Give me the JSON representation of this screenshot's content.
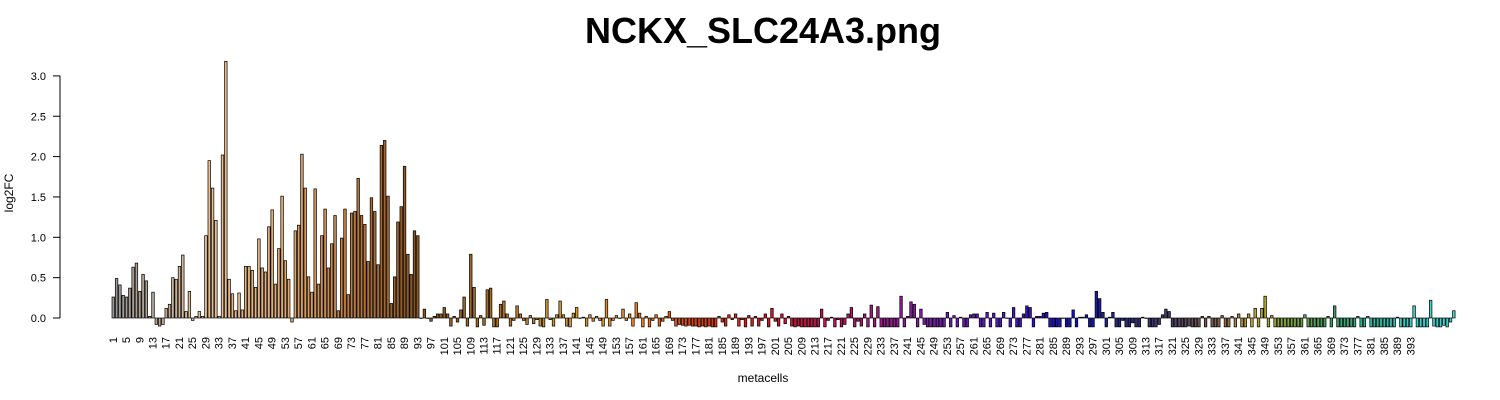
{
  "chart_data": {
    "type": "bar",
    "title": "NCKX_SLC24A3.png",
    "xlabel": "metacells",
    "ylabel": "log2FC",
    "ylim": [
      -0.12,
      3.2
    ],
    "yticks": [
      0.0,
      0.5,
      1.0,
      1.5,
      2.0,
      2.5,
      3.0
    ],
    "ytick_labels": [
      "0.0",
      "0.5",
      "1.0",
      "1.5",
      "2.0",
      "2.5",
      "3.0"
    ],
    "xtick_labels": [
      "1",
      "5",
      "9",
      "13",
      "17",
      "21",
      "25",
      "29",
      "33",
      "37",
      "41",
      "45",
      "49",
      "53",
      "57",
      "61",
      "65",
      "69",
      "73",
      "77",
      "81",
      "85",
      "89",
      "93",
      "97",
      "101",
      "105",
      "109",
      "113",
      "117",
      "121",
      "125",
      "129",
      "133",
      "137",
      "141",
      "145",
      "149",
      "153",
      "157",
      "161",
      "165",
      "169",
      "173",
      "177",
      "181",
      "185",
      "189",
      "193",
      "197",
      "201",
      "205",
      "209",
      "213",
      "217",
      "221",
      "225",
      "229",
      "233",
      "237",
      "241",
      "245",
      "249",
      "253",
      "257",
      "261",
      "265",
      "269",
      "273",
      "277",
      "281",
      "285",
      "289",
      "293",
      "297",
      "301",
      "305",
      "309",
      "313",
      "317",
      "321",
      "325",
      "329",
      "333",
      "337",
      "341",
      "345",
      "349",
      "353",
      "357",
      "361",
      "365",
      "369",
      "373",
      "377",
      "381",
      "385",
      "389",
      "393"
    ],
    "categories_count": 395,
    "grid": false,
    "legend": "none",
    "values": [
      0.26,
      0.49,
      0.41,
      0.28,
      0.26,
      0.37,
      0.63,
      0.68,
      0.33,
      0.54,
      0.46,
      0.02,
      0.32,
      -0.08,
      -0.1,
      -0.08,
      0.12,
      0.17,
      0.5,
      0.48,
      0.64,
      0.78,
      0.08,
      0.33,
      -0.03,
      0.02,
      0.08,
      0.02,
      1.02,
      1.95,
      1.61,
      1.21,
      0.02,
      2.02,
      3.18,
      0.48,
      0.3,
      0.09,
      0.31,
      0.1,
      0.64,
      0.64,
      0.59,
      0.38,
      0.98,
      0.62,
      0.57,
      1.13,
      1.34,
      0.42,
      0.86,
      1.51,
      0.71,
      0.48,
      -0.05,
      1.08,
      1.15,
      2.03,
      1.61,
      0.51,
      0.32,
      1.6,
      0.42,
      1.02,
      1.35,
      0.62,
      0.92,
      1.27,
      0.09,
      0.99,
      1.35,
      0.29,
      1.3,
      1.32,
      1.73,
      1.27,
      1.16,
      0.7,
      1.49,
      1.32,
      0.66,
      2.14,
      2.2,
      1.51,
      0.18,
      0.51,
      1.19,
      1.38,
      1.88,
      0.79,
      0.54,
      1.08,
      1.02,
      0.0,
      0.11,
      0.0,
      -0.04,
      0.02,
      0.05,
      0.05,
      0.13,
      0.05,
      -0.1,
      0.02,
      -0.05,
      0.1,
      0.26,
      -0.1,
      0.79,
      0.38,
      -0.11,
      0.03,
      -0.09,
      0.35,
      0.37,
      -0.11,
      -0.11,
      0.17,
      0.21,
      0.05,
      -0.1,
      -0.03,
      0.15,
      0.05,
      -0.03,
      -0.08,
      0.03,
      -0.07,
      -0.02,
      -0.1,
      -0.11,
      0.23,
      -0.02,
      -0.1,
      0.04,
      0.21,
      0.04,
      -0.1,
      -0.11,
      0.06,
      0.13,
      0.0,
      0.01,
      -0.1,
      0.04,
      -0.04,
      0.02,
      -0.03,
      -0.1,
      0.23,
      -0.1,
      -0.03,
      0.03,
      0.0,
      0.11,
      -0.03,
      0.05,
      -0.1,
      0.19,
      0.06,
      -0.11,
      0.02,
      -0.11,
      -0.03,
      0.04,
      -0.1,
      -0.04,
      0.02,
      0.08,
      -0.03,
      -0.1,
      -0.08,
      -0.09,
      -0.1,
      -0.09,
      -0.1,
      -0.1,
      -0.11,
      -0.1,
      -0.11,
      -0.1,
      -0.11,
      -0.11,
      0.02,
      -0.05,
      -0.1,
      0.04,
      -0.02,
      0.05,
      -0.1,
      -0.02,
      -0.11,
      0.03,
      -0.1,
      0.02,
      -0.1,
      -0.03,
      0.05,
      -0.11,
      0.12,
      -0.04,
      -0.1,
      0.05,
      -0.07,
      0.02,
      -0.1,
      -0.11,
      -0.1,
      -0.11,
      -0.11,
      -0.11,
      -0.11,
      -0.11,
      -0.11,
      0.11,
      -0.11,
      -0.03,
      0.01,
      -0.11,
      -0.02,
      -0.11,
      -0.08,
      0.05,
      0.13,
      -0.11,
      -0.04,
      -0.1,
      0.05,
      -0.11,
      0.16,
      -0.11,
      0.14,
      -0.11,
      -0.11,
      -0.11,
      -0.11,
      -0.11,
      -0.11,
      0.27,
      -0.11,
      0.02,
      0.2,
      0.17,
      -0.11,
      0.11,
      -0.08,
      -0.11,
      -0.11,
      -0.11,
      -0.11,
      -0.11,
      -0.11,
      0.07,
      -0.11,
      0.03,
      -0.11,
      0.01,
      -0.11,
      -0.11,
      0.04,
      0.05,
      0.05,
      -0.11,
      -0.11,
      0.07,
      -0.11,
      0.06,
      -0.11,
      -0.11,
      0.07,
      0.0,
      -0.11,
      0.13,
      -0.11,
      -0.11,
      0.05,
      0.15,
      0.13,
      -0.11,
      0.02,
      0.02,
      0.06,
      0.07,
      -0.11,
      -0.11,
      -0.11,
      -0.11,
      0.0,
      -0.11,
      -0.11,
      0.1,
      -0.11,
      0.01,
      0.01,
      0.04,
      -0.11,
      -0.11,
      0.33,
      0.24,
      0.07,
      -0.11,
      0.01,
      0.07,
      -0.11,
      -0.11,
      -0.03,
      -0.11,
      -0.11,
      -0.06,
      -0.11,
      -0.11,
      0.01,
      0.0,
      -0.11,
      -0.11,
      -0.11,
      -0.08,
      0.04,
      0.11,
      0.08,
      -0.11,
      -0.11,
      -0.11,
      -0.11,
      -0.11,
      -0.1,
      -0.11,
      -0.11,
      -0.11,
      0.02,
      -0.11,
      0.02,
      -0.11,
      -0.11,
      -0.11,
      0.03,
      -0.11,
      -0.11,
      0.02,
      -0.11,
      0.05,
      -0.11,
      -0.11,
      0.05,
      -0.11,
      0.12,
      -0.11,
      0.12,
      0.27,
      -0.11,
      0.03,
      -0.11,
      -0.11,
      -0.11,
      -0.11,
      -0.11,
      -0.11,
      -0.11,
      -0.11,
      -0.11,
      0.04,
      -0.11,
      -0.11,
      -0.11,
      -0.11,
      -0.11,
      -0.11,
      0.02,
      -0.11,
      0.15,
      -0.11,
      -0.11,
      -0.11,
      -0.11,
      -0.11,
      -0.11,
      0.02,
      -0.11,
      -0.11,
      0.02,
      -0.11,
      -0.11,
      -0.11,
      -0.11,
      -0.11,
      -0.11,
      -0.11,
      -0.11,
      0.01,
      -0.11,
      -0.11,
      -0.11,
      -0.11,
      0.15,
      -0.11,
      -0.11,
      -0.11,
      -0.11,
      0.22,
      -0.1,
      -0.11,
      -0.11,
      -0.09,
      -0.11,
      -0.05,
      0.09
    ],
    "color_stops": [
      {
        "at": 1,
        "color": "#999999"
      },
      {
        "at": 14,
        "color": "#B8A790"
      },
      {
        "at": 28,
        "color": "#E8C39B"
      },
      {
        "at": 55,
        "color": "#E2A86C"
      },
      {
        "at": 72,
        "color": "#C27B3E"
      },
      {
        "at": 92,
        "color": "#8C5420"
      },
      {
        "at": 115,
        "color": "#A86D1F"
      },
      {
        "at": 140,
        "color": "#D89A30"
      },
      {
        "at": 160,
        "color": "#E9821D"
      },
      {
        "at": 175,
        "color": "#E14515"
      },
      {
        "at": 195,
        "color": "#DD1717"
      },
      {
        "at": 215,
        "color": "#C7104F"
      },
      {
        "at": 232,
        "color": "#A3168E"
      },
      {
        "at": 250,
        "color": "#7A18B8"
      },
      {
        "at": 270,
        "color": "#5416C6"
      },
      {
        "at": 290,
        "color": "#1010C8"
      },
      {
        "at": 305,
        "color": "#252686"
      },
      {
        "at": 320,
        "color": "#4A3E70"
      },
      {
        "at": 335,
        "color": "#85604A"
      },
      {
        "at": 345,
        "color": "#C9A032"
      },
      {
        "at": 355,
        "color": "#86A83A"
      },
      {
        "at": 368,
        "color": "#3D9E5E"
      },
      {
        "at": 382,
        "color": "#2BB89E"
      },
      {
        "at": 395,
        "color": "#34D5D0"
      }
    ]
  }
}
